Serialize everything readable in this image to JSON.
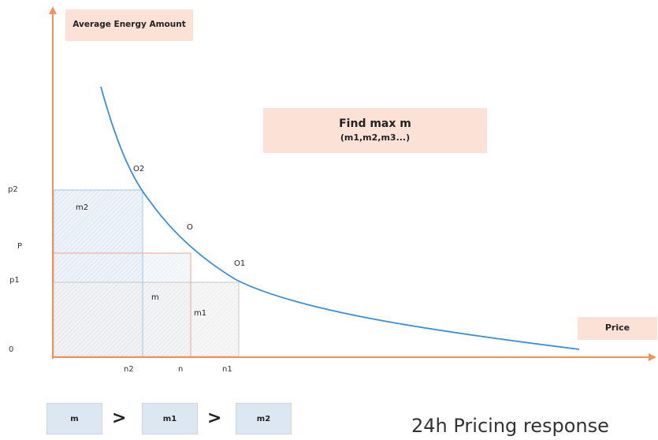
{
  "y_axis_label": "Average Energy Amount",
  "x_axis_label": "Price",
  "note": {
    "title": "Find max m",
    "subtitle": "(m1,m2,m3...)"
  },
  "y_ticks": [
    "p2",
    "P",
    "p1",
    "0"
  ],
  "x_ticks": [
    "n2",
    "n",
    "n1"
  ],
  "points": [
    "O2",
    "O",
    "O1"
  ],
  "areas": [
    "m2",
    "m",
    "m1"
  ],
  "comparison": {
    "items": [
      "m",
      "m1",
      "m2"
    ],
    "operators": [
      ">",
      ">"
    ]
  },
  "caption": "24h Pricing response",
  "colors": {
    "axis": "#f0915e",
    "curve": "#3a8fd6",
    "label_box": "#fbe1d6",
    "rect_m2": "#9fc3e6",
    "rect_m": "#f0a58a",
    "rect_m1": "#b8b8b8"
  }
}
